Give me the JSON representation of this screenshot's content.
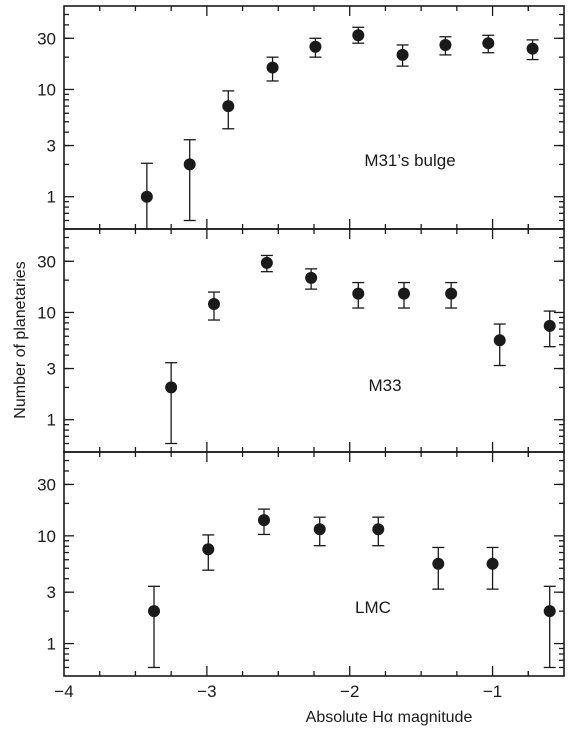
{
  "chart_data": {
    "type": "scatter",
    "xlabel": "Absolute Hα magnitude",
    "ylabel": "Number of planetaries",
    "xlim": [
      -4,
      -0.5
    ],
    "ylim": [
      0.5,
      60
    ],
    "yscale": "log",
    "x_ticks": [
      "−4",
      "−3",
      "−2",
      "−1"
    ],
    "y_ticks": [
      "30",
      "10",
      "3",
      "1"
    ],
    "grid": false,
    "error_bars": true,
    "panels": [
      {
        "label": "M31’s bulge",
        "points": [
          {
            "x": -3.42,
            "y": 1,
            "lo": 0.15,
            "hi": 2.05
          },
          {
            "x": -3.12,
            "y": 2,
            "lo": 0.6,
            "hi": 3.4
          },
          {
            "x": -2.85,
            "y": 7,
            "lo": 4.3,
            "hi": 9.7
          },
          {
            "x": -2.54,
            "y": 16,
            "lo": 12,
            "hi": 20
          },
          {
            "x": -2.24,
            "y": 25,
            "lo": 20,
            "hi": 30
          },
          {
            "x": -1.94,
            "y": 32,
            "lo": 27,
            "hi": 38
          },
          {
            "x": -1.63,
            "y": 21,
            "lo": 16.5,
            "hi": 26
          },
          {
            "x": -1.33,
            "y": 26,
            "lo": 21,
            "hi": 31
          },
          {
            "x": -1.03,
            "y": 27,
            "lo": 22,
            "hi": 32
          },
          {
            "x": -0.72,
            "y": 24,
            "lo": 19,
            "hi": 29
          }
        ]
      },
      {
        "label": "M33",
        "points": [
          {
            "x": -3.25,
            "y": 2,
            "lo": 0.6,
            "hi": 3.4
          },
          {
            "x": -2.95,
            "y": 12,
            "lo": 8.5,
            "hi": 15.5
          },
          {
            "x": -2.58,
            "y": 29,
            "lo": 24,
            "hi": 34
          },
          {
            "x": -2.27,
            "y": 21,
            "lo": 16.5,
            "hi": 25.5
          },
          {
            "x": -1.94,
            "y": 15,
            "lo": 11,
            "hi": 19
          },
          {
            "x": -1.62,
            "y": 15,
            "lo": 11,
            "hi": 19
          },
          {
            "x": -1.29,
            "y": 15,
            "lo": 11,
            "hi": 19
          },
          {
            "x": -0.95,
            "y": 5.5,
            "lo": 3.2,
            "hi": 7.8
          },
          {
            "x": -0.6,
            "y": 7.5,
            "lo": 4.8,
            "hi": 10.3
          }
        ]
      },
      {
        "label": "LMC",
        "points": [
          {
            "x": -3.37,
            "y": 2,
            "lo": 0.6,
            "hi": 3.4
          },
          {
            "x": -2.99,
            "y": 7.5,
            "lo": 4.8,
            "hi": 10.2
          },
          {
            "x": -2.6,
            "y": 14,
            "lo": 10.3,
            "hi": 17.7
          },
          {
            "x": -2.21,
            "y": 11.5,
            "lo": 8.1,
            "hi": 14.9
          },
          {
            "x": -1.8,
            "y": 11.5,
            "lo": 8.1,
            "hi": 14.9
          },
          {
            "x": -1.38,
            "y": 5.5,
            "lo": 3.2,
            "hi": 7.8
          },
          {
            "x": -1.0,
            "y": 5.5,
            "lo": 3.2,
            "hi": 7.8
          },
          {
            "x": -0.6,
            "y": 2,
            "lo": 0.6,
            "hi": 3.4
          }
        ]
      }
    ]
  }
}
